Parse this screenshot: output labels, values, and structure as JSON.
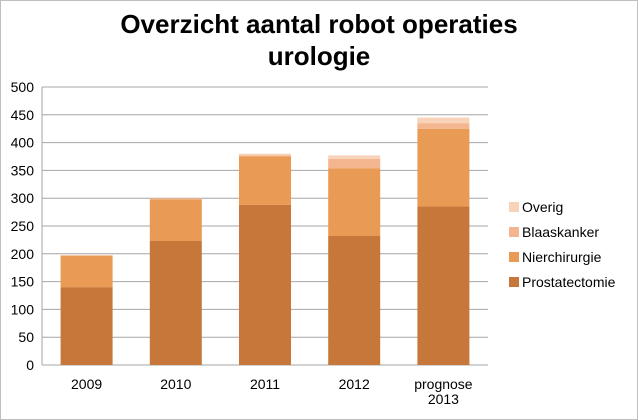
{
  "chart_data": {
    "type": "bar",
    "stacked": true,
    "title_lines": [
      "Overzicht aantal robot operaties",
      "urologie"
    ],
    "categories": [
      [
        "2009"
      ],
      [
        "2010"
      ],
      [
        "2011"
      ],
      [
        "2012"
      ],
      [
        "prognose",
        "2013"
      ]
    ],
    "series": [
      {
        "name": "Prostatectomie",
        "color": "#c8773a",
        "values": [
          140,
          223,
          288,
          232,
          285
        ]
      },
      {
        "name": "Nierchirurgie",
        "color": "#e99a55",
        "values": [
          57,
          75,
          87,
          122,
          140
        ]
      },
      {
        "name": "Blaaskanker",
        "color": "#f3b68f",
        "values": [
          0,
          2,
          2,
          17,
          10
        ]
      },
      {
        "name": "Overig",
        "color": "#f8d3ba",
        "values": [
          0,
          0,
          3,
          6,
          10
        ]
      }
    ],
    "ylim": [
      0,
      500
    ],
    "yticks": [
      0,
      50,
      100,
      150,
      200,
      250,
      300,
      350,
      400,
      450,
      500
    ],
    "grid": true,
    "legend_position": "right"
  }
}
